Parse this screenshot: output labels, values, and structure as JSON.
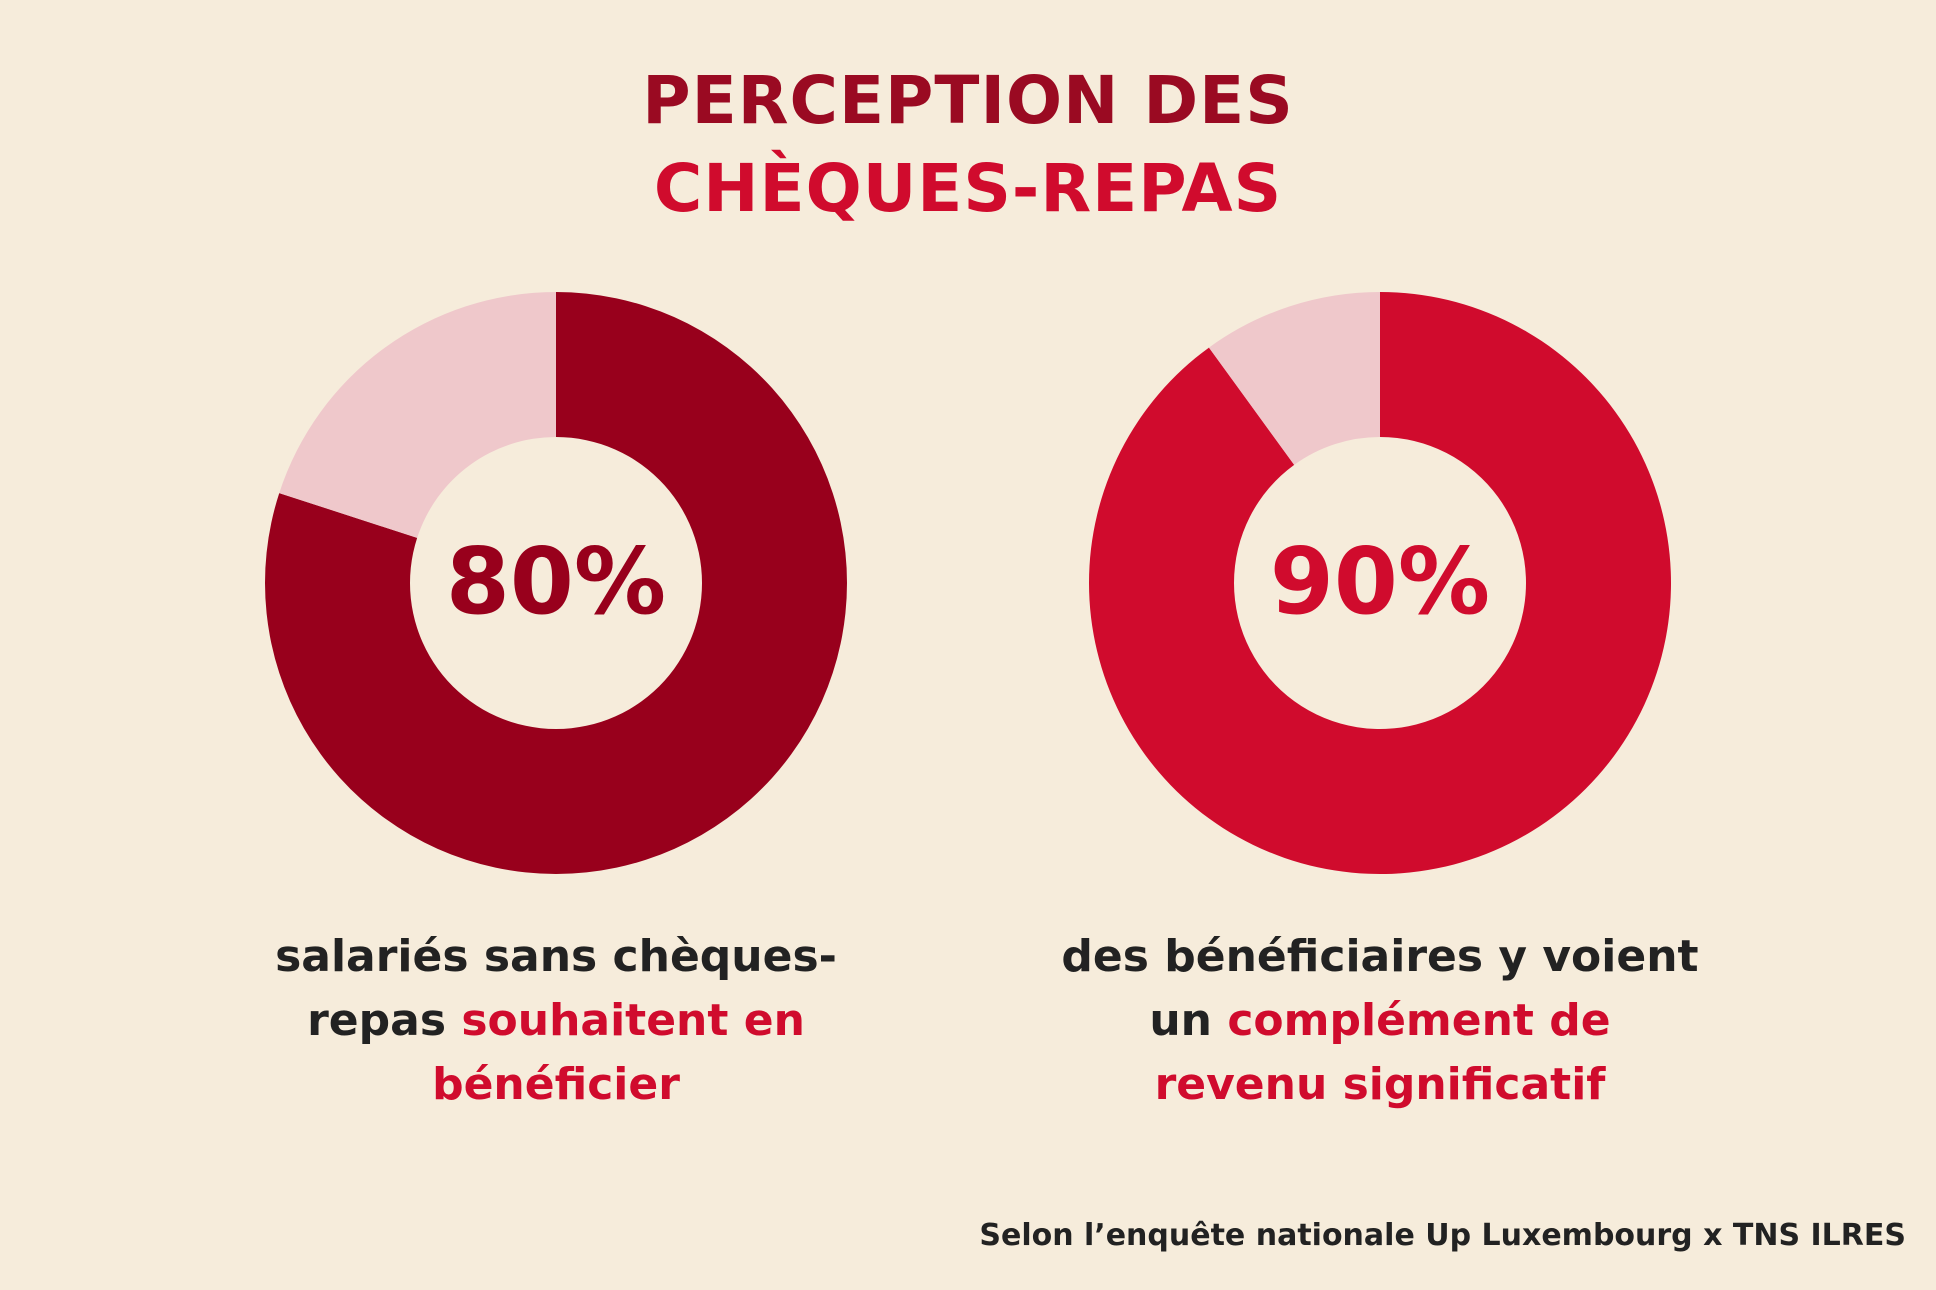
{
  "title": [
    {
      "text": "PERCEPTION DES",
      "color": "#9a0a22"
    },
    {
      "text": "CHÈQUES-REPAS",
      "color": "#d00b2d"
    }
  ],
  "chart_data": [
    {
      "type": "pie",
      "donut": true,
      "values": [
        80,
        20
      ],
      "value_labels": [
        "80%",
        null
      ],
      "colors": [
        "#98001c",
        "#efc8cb"
      ],
      "label_color": "#98001c",
      "caption": [
        {
          "text": "salariés sans chèques-repas",
          "color": "#222222"
        },
        {
          "text": "souhaitent en bénéficier",
          "color": "#d00b2d"
        }
      ]
    },
    {
      "type": "pie",
      "donut": true,
      "values": [
        90,
        10
      ],
      "value_labels": [
        "90%",
        null
      ],
      "colors": [
        "#d00b2d",
        "#efc8cb"
      ],
      "label_color": "#d00b2d",
      "caption": [
        {
          "text": "des bénéficiaires y voient un",
          "color": "#222222"
        },
        {
          "text": "complément de revenu significatif",
          "color": "#d00b2d"
        }
      ]
    }
  ],
  "source": "Selon l’enquête nationale Up Luxembourg x TNS ILRES"
}
